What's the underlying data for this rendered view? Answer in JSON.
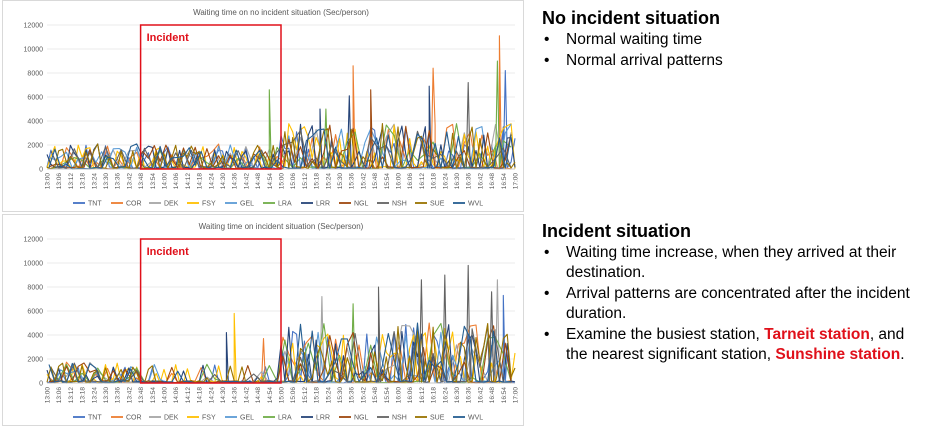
{
  "chart_data": [
    {
      "type": "line",
      "title": "Waiting time on no incident situation (Sec/person)",
      "annotation": "Incident",
      "annotation_range": [
        "13:48",
        "15:00"
      ],
      "ylim": [
        0,
        12000
      ],
      "yticks": [
        "0",
        "2000",
        "4000",
        "6000",
        "8000",
        "10000",
        "12000"
      ],
      "xticks": [
        "13:00",
        "13:06",
        "13:12",
        "13:18",
        "13:24",
        "13:30",
        "13:36",
        "13:42",
        "13:48",
        "13:54",
        "14:00",
        "14:06",
        "14:12",
        "14:18",
        "14:24",
        "14:30",
        "14:36",
        "14:42",
        "14:48",
        "14:54",
        "15:00",
        "15:06",
        "15:12",
        "15:18",
        "15:24",
        "15:30",
        "15:36",
        "15:42",
        "15:48",
        "15:54",
        "16:00",
        "16:06",
        "16:12",
        "16:18",
        "16:24",
        "16:30",
        "16:36",
        "16:42",
        "16:48",
        "16:54",
        "17:00"
      ],
      "series_names": [
        "TNT",
        "COR",
        "DEK",
        "FSY",
        "GEL",
        "LRA",
        "LRR",
        "NGL",
        "NSH",
        "SUE",
        "WVL"
      ],
      "peaks": [
        {
          "series": "COR",
          "x": "15:37",
          "y": 8600
        },
        {
          "series": "COR",
          "x": "16:18",
          "y": 8400
        },
        {
          "series": "COR",
          "x": "16:52",
          "y": 11100
        },
        {
          "series": "LRA",
          "x": "14:54",
          "y": 6600
        },
        {
          "series": "LRA",
          "x": "16:51",
          "y": 9000
        },
        {
          "series": "TNT",
          "x": "16:55",
          "y": 8200
        },
        {
          "series": "NSH",
          "x": "16:36",
          "y": 7200
        },
        {
          "series": "LRR",
          "x": "16:16",
          "y": 6900
        },
        {
          "series": "NGL",
          "x": "15:46",
          "y": 6600
        },
        {
          "series": "LRR",
          "x": "15:35",
          "y": 6100
        },
        {
          "series": "LRR",
          "x": "15:20",
          "y": 5000
        },
        {
          "series": "LRA",
          "x": "15:23",
          "y": 5000
        }
      ]
    },
    {
      "type": "line",
      "title": "Waiting time on incident situation (Sec/person)",
      "annotation": "Incident",
      "annotation_range": [
        "13:48",
        "15:00"
      ],
      "ylim": [
        0,
        12000
      ],
      "yticks": [
        "0",
        "2000",
        "4000",
        "6000",
        "8000",
        "10000",
        "12000"
      ],
      "xticks": [
        "13:00",
        "13:06",
        "13:12",
        "13:18",
        "13:24",
        "13:30",
        "13:36",
        "13:42",
        "13:48",
        "13:54",
        "14:00",
        "14:06",
        "14:12",
        "14:18",
        "14:24",
        "14:30",
        "14:36",
        "14:42",
        "14:48",
        "14:54",
        "15:00",
        "15:06",
        "15:12",
        "15:18",
        "15:24",
        "15:30",
        "15:36",
        "15:42",
        "15:48",
        "15:54",
        "16:00",
        "16:06",
        "16:12",
        "16:18",
        "16:24",
        "16:30",
        "16:36",
        "16:42",
        "16:48",
        "16:54",
        "17:00"
      ],
      "series_names": [
        "TNT",
        "COR",
        "DEK",
        "FSY",
        "GEL",
        "LRA",
        "LRR",
        "NGL",
        "NSH",
        "SUE",
        "WVL"
      ],
      "peaks": [
        {
          "series": "NSH",
          "x": "16:36",
          "y": 9800
        },
        {
          "series": "NSH",
          "x": "16:24",
          "y": 9000
        },
        {
          "series": "DEK",
          "x": "16:51",
          "y": 8600
        },
        {
          "series": "NSH",
          "x": "16:12",
          "y": 8600
        },
        {
          "series": "NSH",
          "x": "15:50",
          "y": 8000
        },
        {
          "series": "NSH",
          "x": "16:48",
          "y": 7600
        },
        {
          "series": "TNT",
          "x": "16:54",
          "y": 7300
        },
        {
          "series": "DEK",
          "x": "15:21",
          "y": 7200
        },
        {
          "series": "FSY",
          "x": "14:36",
          "y": 5800
        },
        {
          "series": "LRR",
          "x": "14:32",
          "y": 4200
        },
        {
          "series": "COR",
          "x": "14:51",
          "y": 3700
        },
        {
          "series": "LRA",
          "x": "15:37",
          "y": 6600
        }
      ]
    }
  ],
  "series_colors": {
    "TNT": "#4472c4",
    "COR": "#ed7d31",
    "DEK": "#a5a5a5",
    "FSY": "#ffc000",
    "GEL": "#5b9bd5",
    "LRA": "#70ad47",
    "LRR": "#264478",
    "NGL": "#9e480e",
    "NSH": "#636363",
    "SUE": "#997300",
    "WVL": "#255e91"
  },
  "incident_color": "#e0101a",
  "side_top": {
    "heading": "No incident situation",
    "bullets": [
      "Normal waiting time",
      "Normal arrival patterns"
    ]
  },
  "side_bottom": {
    "heading": "Incident situation",
    "bullets": [
      "Waiting time increase, when they arrived at their destination.",
      "Arrival patterns are concentrated after the incident duration."
    ],
    "bullet3_pre": "Examine the busiest station, ",
    "bullet3_hl1": "Tarneit station",
    "bullet3_mid": ", and the nearest significant station, ",
    "bullet3_hl2": "Sunshine station",
    "bullet3_end": "."
  },
  "bullet_char": "•"
}
